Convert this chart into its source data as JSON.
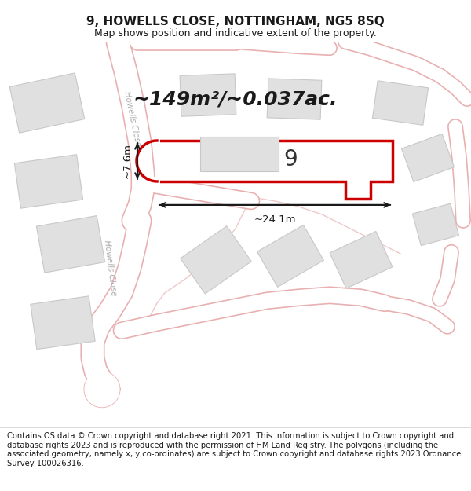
{
  "title_line1": "9, HOWELLS CLOSE, NOTTINGHAM, NG5 8SQ",
  "title_line2": "Map shows position and indicative extent of the property.",
  "area_text": "~149m²/~0.037ac.",
  "dim_width": "~24.1m",
  "dim_height": "~7.6m",
  "label_9": "9",
  "footer_text": "Contains OS data © Crown copyright and database right 2021. This information is subject to Crown copyright and database rights 2023 and is reproduced with the permission of HM Land Registry. The polygons (including the associated geometry, namely x, y co-ordinates) are subject to Crown copyright and database rights 2023 Ordnance Survey 100026316.",
  "bg_color": "#ffffff",
  "road_fill": "#ffffff",
  "road_edge": "#e8b0b0",
  "road_edge_thin": "#f0c8c8",
  "building_fill": "#e0e0e0",
  "building_edge": "#c0c0c0",
  "highlight_fill": "#ffffff",
  "highlight_edge": "#cc0000",
  "dim_color": "#1a1a1a",
  "road_label_color": "#aaaaaa",
  "title_fontsize": 11,
  "subtitle_fontsize": 9,
  "area_fontsize": 18,
  "label_fontsize": 20,
  "footer_fontsize": 7.2,
  "road_lw": 20,
  "road_edge_lw": 1.2,
  "highlight_lw": 2.5
}
